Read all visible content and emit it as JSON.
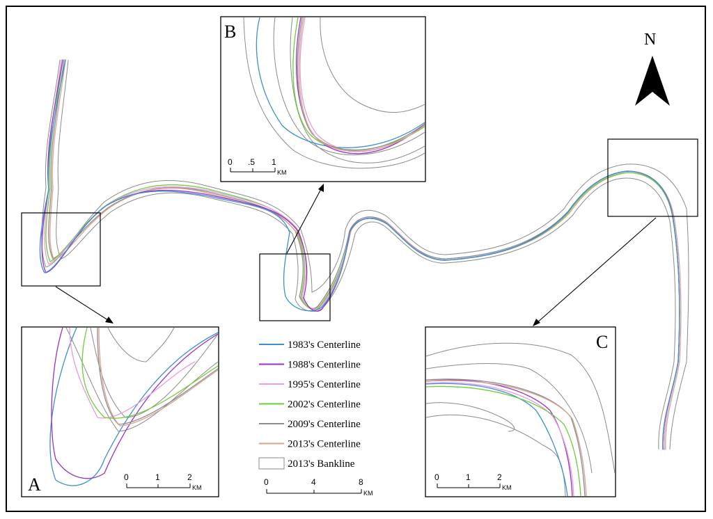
{
  "north": {
    "label": "N"
  },
  "inset_labels": {
    "a": "A",
    "b": "B",
    "c": "C"
  },
  "legend": {
    "items": [
      {
        "label": "1983's Centerline",
        "color": "#3b8fd4"
      },
      {
        "label": "1988's Centerline",
        "color": "#9b2fc9"
      },
      {
        "label": "1995's Centerline",
        "color": "#e79be0"
      },
      {
        "label": "2002's Centerline",
        "color": "#6ccc3a"
      },
      {
        "label": "2009's Centerline",
        "color": "#8c8c8c"
      },
      {
        "label": "2013's Centerline",
        "color": "#d9a08f"
      }
    ],
    "bankline_label": "2013's Bankline"
  },
  "scales": {
    "main": {
      "ticks": [
        "0",
        "4",
        "8"
      ],
      "unit": "KM"
    },
    "inset_a": {
      "ticks": [
        "0",
        "1",
        "2"
      ],
      "unit": "KM"
    },
    "inset_b": {
      "ticks": [
        "0",
        ".5",
        "1"
      ],
      "unit": "KM"
    },
    "inset_c": {
      "ticks": [
        "0",
        "1",
        "2"
      ],
      "unit": "KM"
    }
  }
}
